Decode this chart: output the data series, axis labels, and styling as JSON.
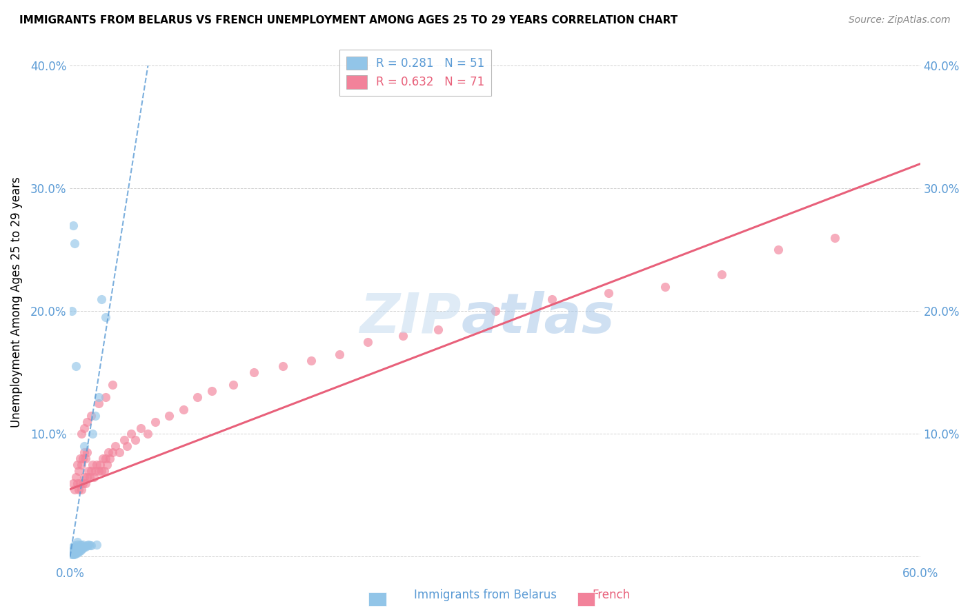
{
  "title": "IMMIGRANTS FROM BELARUS VS FRENCH UNEMPLOYMENT AMONG AGES 25 TO 29 YEARS CORRELATION CHART",
  "source": "Source: ZipAtlas.com",
  "ylabel": "Unemployment Among Ages 25 to 29 years",
  "xlim": [
    0.0,
    0.6
  ],
  "ylim": [
    -0.005,
    0.42
  ],
  "yticks": [
    0.0,
    0.1,
    0.2,
    0.3,
    0.4
  ],
  "ytick_labels_left": [
    "",
    "10.0%",
    "20.0%",
    "30.0%",
    "40.0%"
  ],
  "ytick_labels_right": [
    "",
    "10.0%",
    "20.0%",
    "30.0%",
    "40.0%"
  ],
  "xticks": [
    0.0,
    0.1,
    0.2,
    0.3,
    0.4,
    0.5,
    0.6
  ],
  "xtick_labels": [
    "0.0%",
    "",
    "",
    "",
    "",
    "",
    "60.0%"
  ],
  "blue_color": "#92C5E8",
  "pink_color": "#F2829A",
  "blue_line_color": "#5B9BD5",
  "pink_line_color": "#E8607A",
  "axis_color": "#5B9BD5",
  "R_blue": 0.281,
  "N_blue": 51,
  "R_pink": 0.632,
  "N_pink": 71,
  "blue_scatter_x": [
    0.001,
    0.001,
    0.001,
    0.001,
    0.002,
    0.002,
    0.002,
    0.002,
    0.002,
    0.003,
    0.003,
    0.003,
    0.003,
    0.003,
    0.003,
    0.004,
    0.004,
    0.004,
    0.004,
    0.005,
    0.005,
    0.005,
    0.005,
    0.005,
    0.006,
    0.006,
    0.006,
    0.007,
    0.007,
    0.007,
    0.008,
    0.008,
    0.009,
    0.009,
    0.01,
    0.01,
    0.011,
    0.012,
    0.013,
    0.014,
    0.015,
    0.016,
    0.018,
    0.019,
    0.02,
    0.022,
    0.025,
    0.003,
    0.002,
    0.001,
    0.004
  ],
  "blue_scatter_y": [
    0.002,
    0.003,
    0.004,
    0.005,
    0.002,
    0.003,
    0.004,
    0.006,
    0.008,
    0.002,
    0.003,
    0.004,
    0.005,
    0.007,
    0.009,
    0.003,
    0.004,
    0.006,
    0.008,
    0.003,
    0.005,
    0.007,
    0.01,
    0.012,
    0.004,
    0.006,
    0.008,
    0.005,
    0.007,
    0.01,
    0.006,
    0.009,
    0.007,
    0.01,
    0.09,
    0.008,
    0.008,
    0.009,
    0.01,
    0.009,
    0.009,
    0.1,
    0.115,
    0.01,
    0.13,
    0.21,
    0.195,
    0.255,
    0.27,
    0.2,
    0.155
  ],
  "pink_scatter_x": [
    0.002,
    0.003,
    0.004,
    0.005,
    0.005,
    0.006,
    0.006,
    0.007,
    0.007,
    0.008,
    0.008,
    0.009,
    0.009,
    0.01,
    0.01,
    0.011,
    0.011,
    0.012,
    0.012,
    0.013,
    0.014,
    0.015,
    0.016,
    0.017,
    0.018,
    0.019,
    0.02,
    0.021,
    0.022,
    0.023,
    0.024,
    0.025,
    0.026,
    0.027,
    0.028,
    0.03,
    0.032,
    0.035,
    0.038,
    0.04,
    0.043,
    0.046,
    0.05,
    0.055,
    0.06,
    0.07,
    0.08,
    0.09,
    0.1,
    0.115,
    0.13,
    0.15,
    0.17,
    0.19,
    0.21,
    0.235,
    0.26,
    0.3,
    0.34,
    0.38,
    0.42,
    0.46,
    0.5,
    0.54,
    0.008,
    0.01,
    0.012,
    0.015,
    0.02,
    0.025,
    0.03
  ],
  "pink_scatter_y": [
    0.06,
    0.055,
    0.065,
    0.06,
    0.075,
    0.055,
    0.07,
    0.06,
    0.08,
    0.055,
    0.075,
    0.06,
    0.08,
    0.065,
    0.085,
    0.06,
    0.08,
    0.065,
    0.085,
    0.07,
    0.065,
    0.07,
    0.075,
    0.065,
    0.07,
    0.075,
    0.07,
    0.075,
    0.07,
    0.08,
    0.07,
    0.08,
    0.075,
    0.085,
    0.08,
    0.085,
    0.09,
    0.085,
    0.095,
    0.09,
    0.1,
    0.095,
    0.105,
    0.1,
    0.11,
    0.115,
    0.12,
    0.13,
    0.135,
    0.14,
    0.15,
    0.155,
    0.16,
    0.165,
    0.175,
    0.18,
    0.185,
    0.2,
    0.21,
    0.215,
    0.22,
    0.23,
    0.25,
    0.26,
    0.1,
    0.105,
    0.11,
    0.115,
    0.125,
    0.13,
    0.14
  ],
  "blue_line_x": [
    0.0,
    0.055
  ],
  "blue_line_y": [
    0.0,
    0.4
  ],
  "pink_line_x": [
    0.0,
    0.6
  ],
  "pink_line_y": [
    0.055,
    0.32
  ]
}
